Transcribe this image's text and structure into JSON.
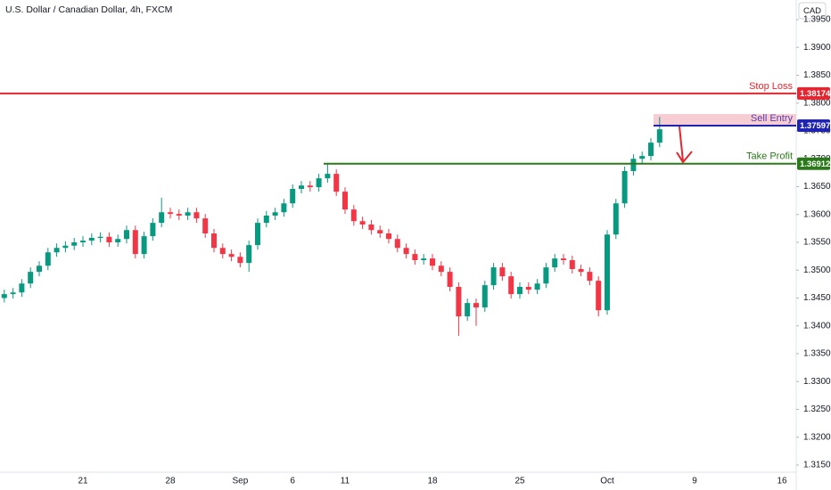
{
  "chart_data": {
    "type": "candlestick",
    "title": "U.S. Dollar / Canadian Dollar, 4h, FXCM",
    "currency_button": "CAD",
    "up_color": "#089981",
    "down_color": "#f23645",
    "grid": false,
    "ylim": [
      1.31372,
      1.39852
    ],
    "yticks": [
      {
        "value": 1.315,
        "label": "1.31500"
      },
      {
        "value": 1.32,
        "label": "1.32000"
      },
      {
        "value": 1.325,
        "label": "1.32500"
      },
      {
        "value": 1.33,
        "label": "1.33000"
      },
      {
        "value": 1.335,
        "label": "1.33500"
      },
      {
        "value": 1.34,
        "label": "1.34000"
      },
      {
        "value": 1.345,
        "label": "1.34500"
      },
      {
        "value": 1.35,
        "label": "1.35000"
      },
      {
        "value": 1.355,
        "label": "1.35500"
      },
      {
        "value": 1.36,
        "label": "1.36000"
      },
      {
        "value": 1.365,
        "label": "1.36500"
      },
      {
        "value": 1.37,
        "label": "1.37000"
      },
      {
        "value": 1.375,
        "label": "1.37500"
      },
      {
        "value": 1.38,
        "label": "1.38000"
      },
      {
        "value": 1.385,
        "label": "1.38500"
      },
      {
        "value": 1.39,
        "label": "1.39000"
      },
      {
        "value": 1.395,
        "label": "1.39500"
      }
    ],
    "categories": [
      null,
      null,
      null,
      null,
      null,
      null,
      null,
      null,
      null,
      "21",
      null,
      null,
      null,
      null,
      null,
      null,
      null,
      null,
      null,
      "28",
      null,
      null,
      null,
      null,
      null,
      null,
      null,
      "Sep",
      null,
      null,
      null,
      null,
      null,
      "6",
      null,
      null,
      null,
      null,
      null,
      "11",
      null,
      null,
      null,
      null,
      null,
      null,
      null,
      null,
      null,
      "18",
      null,
      null,
      null,
      null,
      null,
      null,
      null,
      null,
      null,
      "25",
      null,
      null,
      null,
      null,
      null,
      null,
      null,
      null,
      null,
      "Oct",
      null,
      null,
      null,
      null,
      null,
      null,
      null,
      null,
      null,
      "9",
      null,
      null,
      null,
      null,
      null,
      null,
      null,
      null,
      null,
      "16"
    ],
    "open": [
      1.345,
      1.3457,
      1.346,
      1.3476,
      1.3497,
      1.3508,
      1.3532,
      1.354,
      1.3544,
      1.355,
      1.3553,
      1.3558,
      1.356,
      1.355,
      1.3556,
      1.3572,
      1.3529,
      1.3561,
      1.3585,
      1.3604,
      1.3601,
      1.3598,
      1.3604,
      1.3593,
      1.3566,
      1.354,
      1.3529,
      1.3524,
      1.3513,
      1.3545,
      1.3585,
      1.3598,
      1.3604,
      1.362,
      1.3646,
      1.3652,
      1.3649,
      1.3665,
      1.3673,
      1.3641,
      1.3609,
      1.3588,
      1.3582,
      1.3572,
      1.3566,
      1.3556,
      1.354,
      1.3529,
      1.3518,
      1.3521,
      1.3508,
      1.3497,
      1.347,
      1.3417,
      1.3441,
      1.3433,
      1.3473,
      1.3505,
      1.3489,
      1.3457,
      1.347,
      1.3465,
      1.3476,
      1.3505,
      1.3521,
      1.3518,
      1.3502,
      1.3497,
      1.3481,
      1.3428,
      1.3564,
      1.362,
      1.3678,
      1.37,
      1.3705,
      1.3729,
      null,
      null,
      null,
      null,
      null,
      null,
      null,
      null,
      null,
      null,
      null,
      null,
      null,
      null
    ],
    "high": [
      1.3465,
      1.3468,
      1.3484,
      1.3505,
      1.3516,
      1.354,
      1.3548,
      1.3552,
      1.3558,
      1.3561,
      1.3566,
      1.3568,
      1.3568,
      1.3564,
      1.358,
      1.358,
      1.3569,
      1.3593,
      1.363,
      1.3612,
      1.3609,
      1.3612,
      1.3612,
      1.3601,
      1.3574,
      1.3548,
      1.3537,
      1.3532,
      1.3553,
      1.3593,
      1.3606,
      1.3612,
      1.3628,
      1.3654,
      1.366,
      1.366,
      1.3673,
      1.3691,
      1.3681,
      1.3649,
      1.3617,
      1.3596,
      1.359,
      1.358,
      1.3574,
      1.3564,
      1.3548,
      1.3537,
      1.3529,
      1.3529,
      1.3516,
      1.3505,
      1.3478,
      1.3449,
      1.3449,
      1.3481,
      1.3513,
      1.3513,
      1.3497,
      1.3478,
      1.3478,
      1.3484,
      1.3513,
      1.3529,
      1.3529,
      1.3526,
      1.351,
      1.3505,
      1.3489,
      1.3572,
      1.3628,
      1.3686,
      1.3708,
      1.3713,
      1.3737,
      1.3775,
      null,
      null,
      null,
      null,
      null,
      null,
      null,
      null,
      null,
      null,
      null,
      null,
      null,
      null
    ],
    "low": [
      1.3442,
      1.3449,
      1.3452,
      1.3468,
      1.3489,
      1.35,
      1.3524,
      1.3532,
      1.3536,
      1.3542,
      1.3545,
      1.355,
      1.3542,
      1.3542,
      1.3548,
      1.3521,
      1.3521,
      1.3553,
      1.3577,
      1.3593,
      1.359,
      1.359,
      1.3585,
      1.3558,
      1.3532,
      1.3521,
      1.3516,
      1.3505,
      1.3497,
      1.3537,
      1.3577,
      1.359,
      1.3596,
      1.3612,
      1.3638,
      1.3641,
      1.3641,
      1.3657,
      1.3633,
      1.3601,
      1.358,
      1.3574,
      1.3564,
      1.3558,
      1.3548,
      1.3532,
      1.3521,
      1.351,
      1.351,
      1.35,
      1.3489,
      1.3462,
      1.3382,
      1.3409,
      1.34,
      1.3425,
      1.3465,
      1.3481,
      1.3449,
      1.3449,
      1.3457,
      1.3457,
      1.3468,
      1.3497,
      1.351,
      1.3494,
      1.3489,
      1.3473,
      1.3417,
      1.342,
      1.3556,
      1.3612,
      1.367,
      1.3692,
      1.3697,
      1.3721,
      null,
      null,
      null,
      null,
      null,
      null,
      null,
      null,
      null,
      null,
      null,
      null,
      null,
      null
    ],
    "close": [
      1.3457,
      1.346,
      1.3476,
      1.3497,
      1.3508,
      1.3532,
      1.354,
      1.3544,
      1.355,
      1.3553,
      1.3558,
      1.356,
      1.355,
      1.3556,
      1.3572,
      1.3529,
      1.3561,
      1.3585,
      1.3604,
      1.3601,
      1.3598,
      1.3604,
      1.3593,
      1.3566,
      1.354,
      1.3529,
      1.3524,
      1.3513,
      1.3545,
      1.3585,
      1.3598,
      1.3604,
      1.362,
      1.3646,
      1.3652,
      1.3649,
      1.3665,
      1.3673,
      1.3641,
      1.3609,
      1.3588,
      1.3582,
      1.3572,
      1.3566,
      1.3556,
      1.354,
      1.3529,
      1.3518,
      1.3521,
      1.3508,
      1.3497,
      1.347,
      1.3417,
      1.3441,
      1.3433,
      1.3473,
      1.3505,
      1.3489,
      1.3457,
      1.347,
      1.3465,
      1.3476,
      1.3505,
      1.3521,
      1.3518,
      1.3502,
      1.3497,
      1.3481,
      1.3428,
      1.3564,
      1.362,
      1.3678,
      1.37,
      1.3705,
      1.3729,
      1.3753,
      null,
      null,
      null,
      null,
      null,
      null,
      null,
      null,
      null,
      null,
      null,
      null,
      null,
      null
    ],
    "zone": {
      "low": 1.37597,
      "high": 1.37804,
      "color": "#f7cdd4"
    },
    "levels": [
      {
        "label": "Stop Loss",
        "value": 1.38174,
        "color": "#e3262f",
        "text_color": "#e3262f"
      },
      {
        "label": "Sell Entry",
        "value": 1.37597,
        "color": "#1f24b0",
        "text_color": "#5a3fa8"
      },
      {
        "label": "Take Profit",
        "value": 1.36912,
        "color": "#2a7a1a",
        "text_color": "#2a7a1a"
      }
    ]
  }
}
